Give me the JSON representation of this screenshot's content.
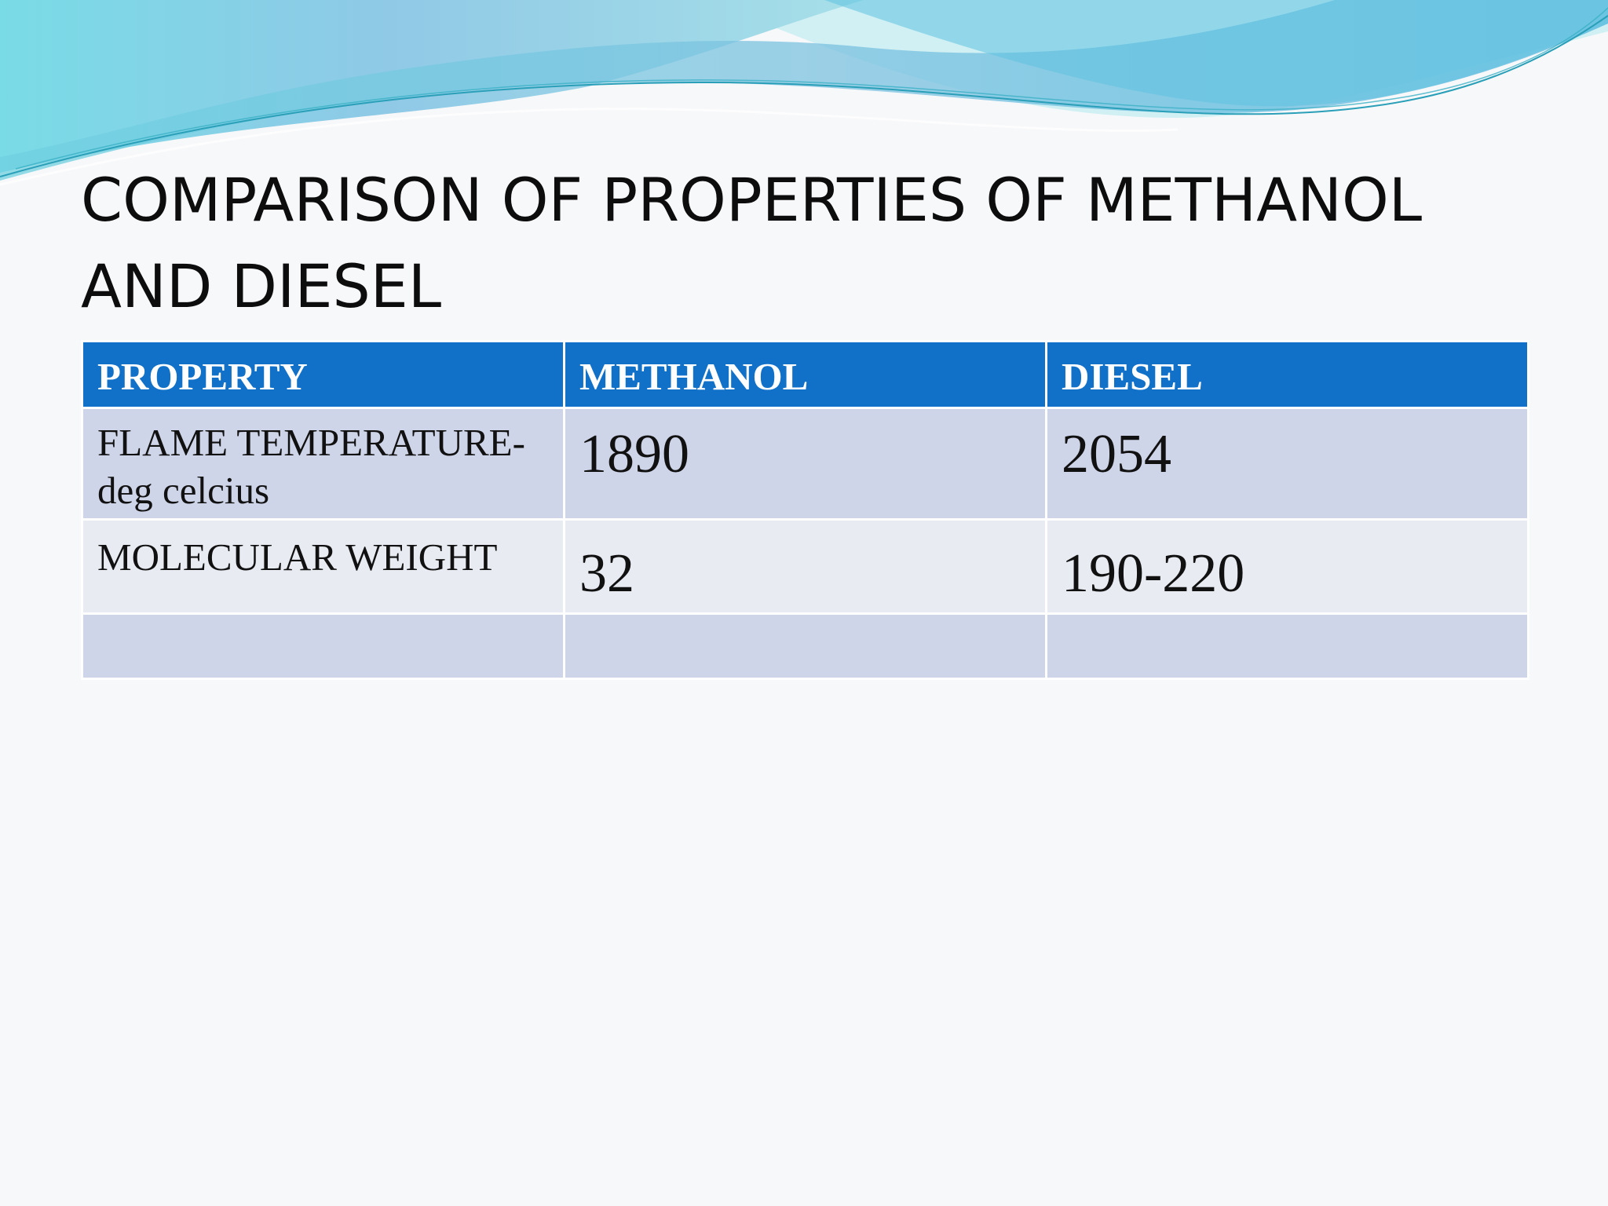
{
  "slide": {
    "title": "COMPARISON OF PROPERTIES OF METHANOL AND DIESEL"
  },
  "table": {
    "headers": [
      "PROPERTY",
      "METHANOL",
      "DIESEL"
    ],
    "rows": [
      {
        "property": "FLAME TEMPERATURE-deg celcius",
        "methanol": "1890",
        "diesel": "2054"
      },
      {
        "property": "MOLECULAR WEIGHT",
        "methanol": "32",
        "diesel": "190-220"
      },
      {
        "property": "",
        "methanol": "",
        "diesel": ""
      }
    ]
  },
  "colors": {
    "header_bg": "#1170c8",
    "row_dark": "#cfd5e8",
    "row_light": "#e8ebf2",
    "wave_dark": "#4fb3d9",
    "wave_light": "#9fe0ea"
  }
}
